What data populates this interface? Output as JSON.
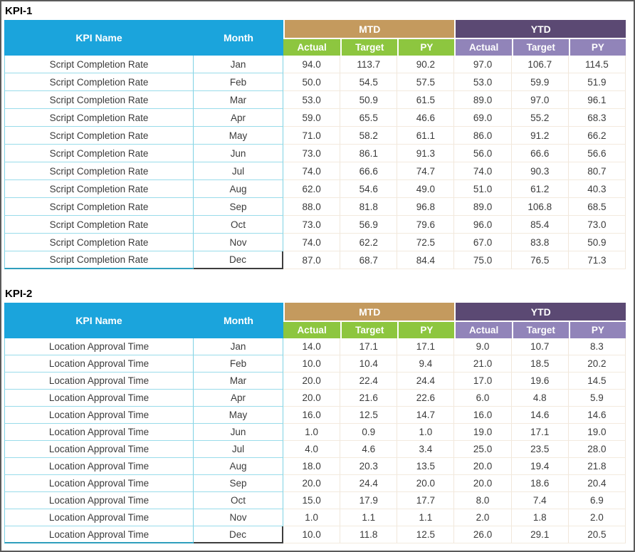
{
  "colors": {
    "header_cyan": "#1ba4dc",
    "mtd_tan": "#c49a5e",
    "ytd_dark_purple": "#5b4973",
    "sub_green": "#8dc63f",
    "sub_light_purple": "#9184b9",
    "teal_border": "#7ed2e4",
    "pale_border": "#f1e7db",
    "window_border": "#5a5a5a",
    "cell_text": "#3b3b3b"
  },
  "header": {
    "kpi_name": "KPI Name",
    "month": "Month",
    "mtd": "MTD",
    "ytd": "YTD",
    "sub_labels": [
      "Actual",
      "Target",
      "PY"
    ]
  },
  "tables": [
    {
      "title": "KPI-1",
      "kpi_name": "Script Completion Rate",
      "rows": [
        {
          "month": "Jan",
          "mtd": [
            "94.0",
            "113.7",
            "90.2"
          ],
          "ytd": [
            "97.0",
            "106.7",
            "114.5"
          ]
        },
        {
          "month": "Feb",
          "mtd": [
            "50.0",
            "54.5",
            "57.5"
          ],
          "ytd": [
            "53.0",
            "59.9",
            "51.9"
          ]
        },
        {
          "month": "Mar",
          "mtd": [
            "53.0",
            "50.9",
            "61.5"
          ],
          "ytd": [
            "89.0",
            "97.0",
            "96.1"
          ]
        },
        {
          "month": "Apr",
          "mtd": [
            "59.0",
            "65.5",
            "46.6"
          ],
          "ytd": [
            "69.0",
            "55.2",
            "68.3"
          ]
        },
        {
          "month": "May",
          "mtd": [
            "71.0",
            "58.2",
            "61.1"
          ],
          "ytd": [
            "86.0",
            "91.2",
            "66.2"
          ]
        },
        {
          "month": "Jun",
          "mtd": [
            "73.0",
            "86.1",
            "91.3"
          ],
          "ytd": [
            "56.0",
            "66.6",
            "56.6"
          ]
        },
        {
          "month": "Jul",
          "mtd": [
            "74.0",
            "66.6",
            "74.7"
          ],
          "ytd": [
            "74.0",
            "90.3",
            "80.7"
          ]
        },
        {
          "month": "Aug",
          "mtd": [
            "62.0",
            "54.6",
            "49.0"
          ],
          "ytd": [
            "51.0",
            "61.2",
            "40.3"
          ]
        },
        {
          "month": "Sep",
          "mtd": [
            "88.0",
            "81.8",
            "96.8"
          ],
          "ytd": [
            "89.0",
            "106.8",
            "68.5"
          ]
        },
        {
          "month": "Oct",
          "mtd": [
            "73.0",
            "56.9",
            "79.6"
          ],
          "ytd": [
            "96.0",
            "85.4",
            "73.0"
          ]
        },
        {
          "month": "Nov",
          "mtd": [
            "74.0",
            "62.2",
            "72.5"
          ],
          "ytd": [
            "67.0",
            "83.8",
            "50.9"
          ]
        },
        {
          "month": "Dec",
          "mtd": [
            "87.0",
            "68.7",
            "84.4"
          ],
          "ytd": [
            "75.0",
            "76.5",
            "71.3"
          ]
        }
      ]
    },
    {
      "title": "KPI-2",
      "kpi_name": "Location Approval Time",
      "rows": [
        {
          "month": "Jan",
          "mtd": [
            "14.0",
            "17.1",
            "17.1"
          ],
          "ytd": [
            "9.0",
            "10.7",
            "8.3"
          ]
        },
        {
          "month": "Feb",
          "mtd": [
            "10.0",
            "10.4",
            "9.4"
          ],
          "ytd": [
            "21.0",
            "18.5",
            "20.2"
          ]
        },
        {
          "month": "Mar",
          "mtd": [
            "20.0",
            "22.4",
            "24.4"
          ],
          "ytd": [
            "17.0",
            "19.6",
            "14.5"
          ]
        },
        {
          "month": "Apr",
          "mtd": [
            "20.0",
            "21.6",
            "22.6"
          ],
          "ytd": [
            "6.0",
            "4.8",
            "5.9"
          ]
        },
        {
          "month": "May",
          "mtd": [
            "16.0",
            "12.5",
            "14.7"
          ],
          "ytd": [
            "16.0",
            "14.6",
            "14.6"
          ]
        },
        {
          "month": "Jun",
          "mtd": [
            "1.0",
            "0.9",
            "1.0"
          ],
          "ytd": [
            "19.0",
            "17.1",
            "19.0"
          ]
        },
        {
          "month": "Jul",
          "mtd": [
            "4.0",
            "4.6",
            "3.4"
          ],
          "ytd": [
            "25.0",
            "23.5",
            "28.0"
          ]
        },
        {
          "month": "Aug",
          "mtd": [
            "18.0",
            "20.3",
            "13.5"
          ],
          "ytd": [
            "20.0",
            "19.4",
            "21.8"
          ]
        },
        {
          "month": "Sep",
          "mtd": [
            "20.0",
            "24.4",
            "20.0"
          ],
          "ytd": [
            "20.0",
            "18.6",
            "20.4"
          ]
        },
        {
          "month": "Oct",
          "mtd": [
            "15.0",
            "17.9",
            "17.7"
          ],
          "ytd": [
            "8.0",
            "7.4",
            "6.9"
          ]
        },
        {
          "month": "Nov",
          "mtd": [
            "1.0",
            "1.1",
            "1.1"
          ],
          "ytd": [
            "2.0",
            "1.8",
            "2.0"
          ]
        },
        {
          "month": "Dec",
          "mtd": [
            "10.0",
            "11.8",
            "12.5"
          ],
          "ytd": [
            "26.0",
            "29.1",
            "20.5"
          ]
        }
      ]
    }
  ]
}
